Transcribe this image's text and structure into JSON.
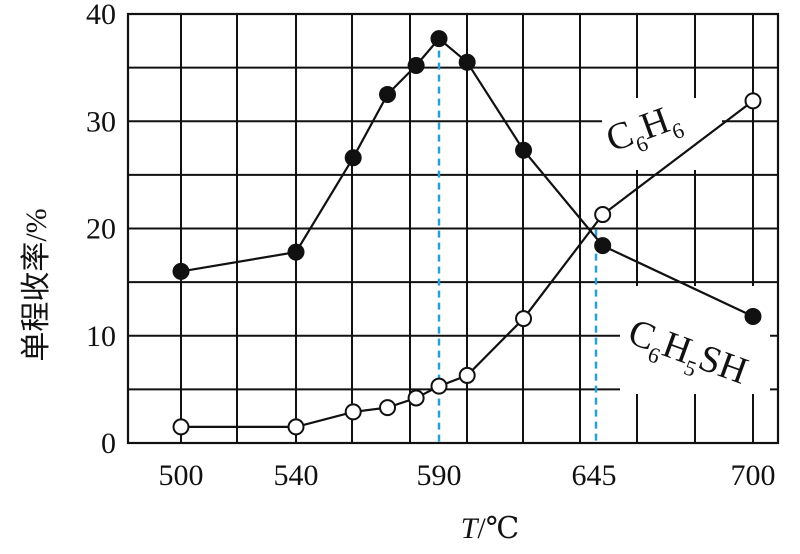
{
  "chart_data": {
    "type": "line",
    "xlabel_italic": "T",
    "xlabel_unit": "/℃",
    "ylabel": "单程收率/%",
    "x_ticks": [
      "500",
      "540",
      "590",
      "645",
      "700"
    ],
    "y_ticks": [
      "0",
      "10",
      "20",
      "30",
      "40"
    ],
    "xlim": [
      500,
      700
    ],
    "ylim": [
      0,
      40
    ],
    "grid": true,
    "series": [
      {
        "name": "C6H5SH",
        "label_main": "C",
        "label_parts": [
          {
            "text": "C",
            "sub": false
          },
          {
            "text": "6",
            "sub": true
          },
          {
            "text": "H",
            "sub": false
          },
          {
            "text": "5",
            "sub": true
          },
          {
            "text": "SH",
            "sub": false
          }
        ],
        "marker": "filled",
        "x": [
          500,
          540,
          560,
          572,
          582,
          590,
          600,
          620,
          648,
          700
        ],
        "y": [
          16.0,
          17.8,
          26.6,
          32.5,
          35.2,
          37.7,
          35.5,
          27.3,
          18.4,
          11.8
        ]
      },
      {
        "name": "C6H6",
        "label_parts": [
          {
            "text": "C",
            "sub": false
          },
          {
            "text": "6",
            "sub": true
          },
          {
            "text": "H",
            "sub": false
          },
          {
            "text": "6",
            "sub": true
          }
        ],
        "marker": "open",
        "x": [
          500,
          540,
          560,
          572,
          582,
          590,
          600,
          620,
          648,
          700
        ],
        "y": [
          1.5,
          1.5,
          2.9,
          3.3,
          4.2,
          5.3,
          6.3,
          11.6,
          21.3,
          31.9
        ]
      }
    ],
    "reference_lines_x": [
      590,
      645
    ]
  }
}
